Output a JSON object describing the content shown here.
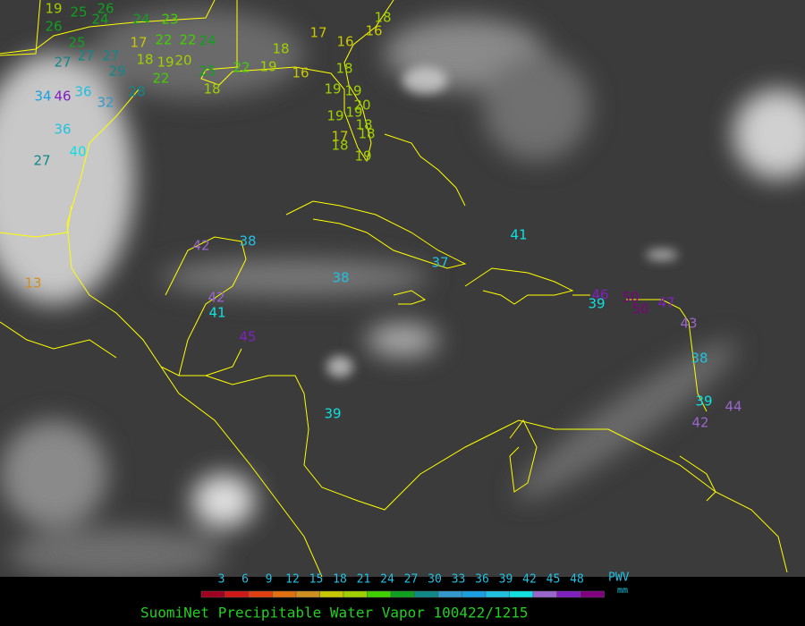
{
  "title": "SuomiNet Precipitable Water Vapor 100422/1215",
  "legend": {
    "label": "PWV",
    "unit": "mm",
    "ticks": [
      3,
      6,
      9,
      12,
      15,
      18,
      21,
      24,
      27,
      30,
      33,
      36,
      39,
      42,
      45,
      48
    ],
    "colors": [
      "#a00020",
      "#d01818",
      "#e04010",
      "#e07010",
      "#d09020",
      "#c8c800",
      "#a0d000",
      "#40d000",
      "#10a020",
      "#108888",
      "#3399cc",
      "#1a9fe0",
      "#20c0e0",
      "#10e0e0",
      "#9966cc",
      "#8020c0",
      "#800080"
    ]
  },
  "stations": [
    19,
    25,
    26,
    26,
    24,
    24,
    23,
    25,
    17,
    22,
    22,
    24,
    27,
    27,
    27,
    29,
    18,
    19,
    20,
    25,
    22,
    19,
    18,
    17,
    16,
    16,
    18,
    16,
    18,
    22,
    28,
    18,
    34,
    46,
    36,
    32,
    36,
    40,
    27,
    19,
    19,
    20,
    19,
    19,
    18,
    17,
    18,
    18,
    19,
    13,
    42,
    38,
    38,
    37,
    41,
    46,
    50,
    39,
    50,
    47,
    42,
    41,
    45,
    43,
    38,
    39,
    44,
    42,
    39
  ]
}
